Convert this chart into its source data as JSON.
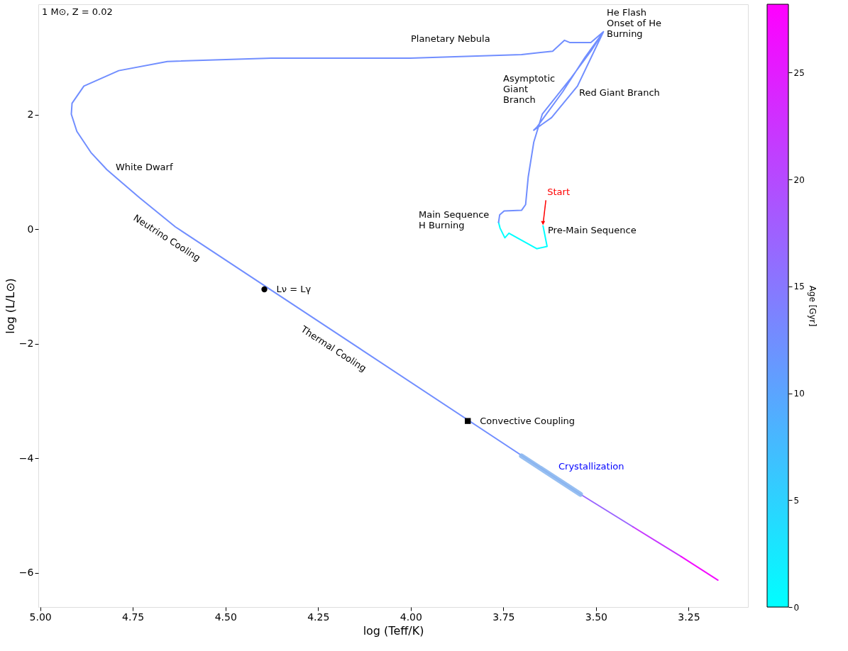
{
  "chart_data": {
    "type": "line",
    "xlabel": "log (Teff/K)",
    "ylabel": "log (L/L⊙)",
    "clabel": "Age [Gyr]",
    "clim": [
      0,
      28.2
    ],
    "cticks": [
      0,
      5,
      10,
      15,
      20,
      25
    ],
    "grid": false,
    "xlim": [
      5.005,
      3.09
    ],
    "xticks": [
      {
        "value": 5,
        "label": "5.00"
      },
      4.75,
      {
        "value": 4.5,
        "label": "4.50"
      },
      4.25,
      {
        "value": 4,
        "label": "4.00"
      },
      3.75,
      {
        "value": 3.5,
        "label": "3.50"
      },
      3.25
    ],
    "ylim": [
      -6.6,
      3.93
    ],
    "yticks": [
      {
        "value": -6,
        "label": "−6"
      },
      {
        "value": -4,
        "label": "−4"
      },
      {
        "value": -2,
        "label": "−2"
      },
      0,
      2
    ],
    "series": [
      {
        "color": "#00ffff",
        "x": [
          3.643,
          3.632,
          3.66,
          3.735,
          3.746,
          3.759,
          3.763
        ],
        "values": [
          0.06,
          -0.3,
          -0.34,
          -0.07,
          -0.15,
          0.02,
          0.12
        ]
      },
      {
        "color": "#718eff",
        "x": [
          3.763,
          3.76,
          3.748,
          3.701,
          3.69,
          3.683,
          3.668,
          3.645,
          3.57,
          3.514,
          3.48,
          3.55,
          3.62,
          3.668,
          3.66,
          3.59,
          3.53,
          3.48,
          3.514,
          3.57,
          3.585,
          3.617,
          3.701,
          4.001,
          4.376,
          4.657,
          4.788,
          4.882,
          4.914,
          4.916,
          4.901,
          4.863,
          4.82,
          4.732,
          4.635,
          3.542
        ],
        "values": [
          0.12,
          0.25,
          0.32,
          0.33,
          0.43,
          0.91,
          1.52,
          2.01,
          2.62,
          3.11,
          3.45,
          2.5,
          1.95,
          1.73,
          1.78,
          2.4,
          3.0,
          3.45,
          3.26,
          3.26,
          3.3,
          3.11,
          3.05,
          2.99,
          2.99,
          2.93,
          2.77,
          2.5,
          2.2,
          2.01,
          1.71,
          1.34,
          1.04,
          0.55,
          0.04,
          -4.63
        ]
      },
      {
        "color": "#9a65ff",
        "x": [
          3.542,
          3.4
        ],
        "values": [
          -4.63,
          -5.2
        ]
      },
      {
        "color": "#c738ff",
        "x": [
          3.4,
          3.27
        ],
        "values": [
          -5.2,
          -5.72
        ]
      },
      {
        "color": "#f40bff",
        "x": [
          3.27,
          3.171
        ],
        "values": [
          -5.72,
          -6.13
        ]
      },
      {
        "color": "#8cb8f0",
        "x": [
          3.701,
          3.542
        ],
        "values": [
          -3.96,
          -4.63
        ]
      },
      {
        "type": "scatter",
        "name": "Lν = Lγ",
        "marker": "circle",
        "color": "#000000",
        "x": [
          4.395
        ],
        "values": [
          -1.05
        ]
      },
      {
        "type": "scatter",
        "name": "Convective Coupling",
        "marker": "square",
        "color": "#000000",
        "x": [
          3.846
        ],
        "values": [
          -3.35
        ]
      }
    ],
    "annotations": [
      "1 M⊙, Z = 0.02",
      "Planetary Nebula",
      "He Flash\nOnset of He\nBurning",
      "Asymptotic\nGiant\nBranch",
      "Red Giant Branch",
      "White Dwarf",
      "Main Sequence\nH Burning",
      "Pre-Main Sequence",
      {
        "text": "Start",
        "x": 3.643,
        "y": 0.06
      },
      "Neutrino Cooling",
      "Thermal Cooling",
      "Crystallization"
    ]
  }
}
